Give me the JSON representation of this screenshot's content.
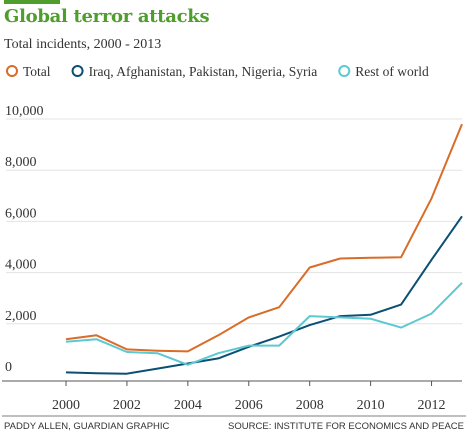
{
  "title": "Global terror attacks",
  "subtitle": "Total incidents, 2000 - 2013",
  "credit": "PADDY ALLEN, GUARDIAN GRAPHIC",
  "source": "SOURCE: INSTITUTE FOR ECONOMICS AND PEACE",
  "colors": {
    "title": "#4f9d2d",
    "total": "#d96c27",
    "five_countries": "#0b4f73",
    "rest": "#5cc8d2",
    "grid": "#e3e3e3",
    "axis": "#555555"
  },
  "chart_data": {
    "type": "line",
    "title": "Global terror attacks",
    "subtitle": "Total incidents, 2000 - 2013",
    "x": [
      2000,
      2001,
      2002,
      2003,
      2004,
      2005,
      2006,
      2007,
      2008,
      2009,
      2010,
      2011,
      2012,
      2013
    ],
    "xlim": [
      2000,
      2013
    ],
    "ylim": [
      0,
      10000
    ],
    "x_ticks": [
      "2000",
      "2002",
      "2004",
      "2006",
      "2008",
      "2010",
      "2012"
    ],
    "x_tick_values": [
      2000,
      2002,
      2004,
      2006,
      2008,
      2010,
      2012
    ],
    "y_ticks": [
      "0",
      "2,000",
      "4,000",
      "6,000",
      "8,000",
      "10,000"
    ],
    "y_tick_values": [
      0,
      2000,
      4000,
      6000,
      8000,
      10000
    ],
    "grid": "horizontal",
    "legend_position": "top",
    "series": [
      {
        "name": "Total",
        "color_key": "total",
        "values": [
          1400,
          1550,
          1000,
          950,
          920,
          1550,
          2250,
          2650,
          4200,
          4550,
          4580,
          4600,
          6900,
          9800
        ]
      },
      {
        "name": "Iraq, Afghanistan, Pakistan, Nigeria, Syria",
        "color_key": "five_countries",
        "values": [
          100,
          70,
          50,
          250,
          450,
          650,
          1100,
          1500,
          1950,
          2300,
          2350,
          2750,
          4500,
          6200
        ]
      },
      {
        "name": "Rest of world",
        "color_key": "rest",
        "values": [
          1300,
          1400,
          900,
          850,
          400,
          850,
          1150,
          1150,
          2300,
          2250,
          2200,
          1850,
          2400,
          3600
        ]
      }
    ]
  }
}
